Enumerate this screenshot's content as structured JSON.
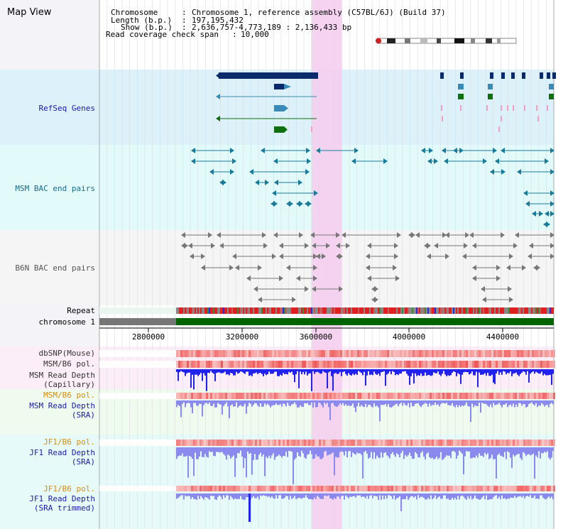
{
  "title": "Map View",
  "header": {
    "chromosome_key": "Chromosome",
    "chromosome_value": "Chromosome 1, reference assembly (C57BL/6J) (Build 37)",
    "length_key": "Length (b.p.)",
    "length_value": "197,195,432",
    "show_key": "Show (b.p.)",
    "show_value": "2,636,757-4,773,189 : 2,136,433 bp",
    "span_key": "Read coverage check span",
    "span_value": "10,000"
  },
  "tracks": {
    "refseq": "RefSeq Genes",
    "msm_bac": "MSM BAC end pairs",
    "b6n_bac": "B6N BAC end pairs",
    "repeat": "Repeat",
    "chromosome": "chromosome 1",
    "dbsnp": "dbSNP(Mouse)",
    "msm_b6_pol_1": "MSM/B6 pol.",
    "msm_depth_cap_1": "MSM Read Depth",
    "msm_depth_cap_2": "(Capillary)",
    "msm_b6_pol_2": "MSM/B6 pol.",
    "msm_depth_sra_1": "MSM Read Depth",
    "msm_depth_sra_2": "(SRA)",
    "jf1_b6_pol_1": "JF1/B6 pol.",
    "jf1_depth_sra_1": "JF1 Read Depth",
    "jf1_depth_sra_2": "(SRA)",
    "jf1_b6_pol_2": "JF1/B6 pol.",
    "jf1_depth_trim_1": "JF1 Read Depth",
    "jf1_depth_trim_2": "(SRA trimmed)"
  },
  "axis": {
    "ticks": [
      "2800000",
      "3200000",
      "3600000",
      "4000000",
      "4400000"
    ]
  },
  "colors": {
    "refseq_label": "#1a1aaa",
    "msm_bac_label": "#1a6a8a",
    "b6n_label": "#555555",
    "pol_label": "#e08a00",
    "depth_label": "#1a1aaa",
    "highlight": "#f5cdee",
    "chromosome_bar": "#006400",
    "gene_dark": "#0a2a6a",
    "gene_mid": "#3a8ab8",
    "gene_green": "#107010",
    "bac_blue": "#1a7a9a",
    "bac_gray": "#777777",
    "depth_blue": "#2222ee",
    "depth_light": "#8a8aee",
    "pol_red": "#ee6666"
  }
}
